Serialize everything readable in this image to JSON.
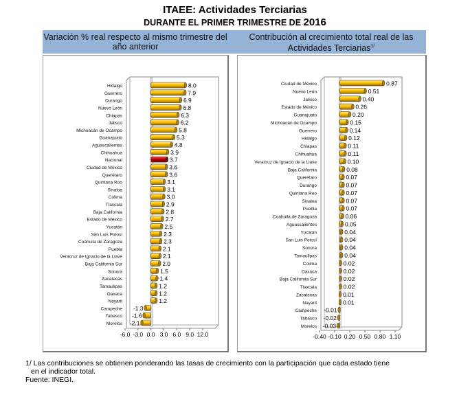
{
  "title": "ITAEE: Actividades Terciarias",
  "subtitle_prefix": "DURANTE EL PRIMER TRIMESTRE DE ",
  "subtitle_year": "2016",
  "colors": {
    "header_bg": "#95b3d7",
    "bar": "#ffc000",
    "bar_highlight": "#c00000"
  },
  "chart_data": [
    {
      "type": "bar",
      "orientation": "horizontal",
      "title": "Variación % real respecto al mismo trimestre del año anterior",
      "xlim": [
        -6,
        12
      ],
      "ticks": [
        "-6.0",
        "-3.0",
        "0.0",
        "3.0",
        "6.0",
        "9.0",
        "12.0"
      ],
      "highlight": "Nacional",
      "categories": [
        "Hidalgo",
        "Guerrero",
        "Durango",
        "Nuevo León",
        "Chiapas",
        "Jalisco",
        "Michoacán de Ocampo",
        "Guanajuato",
        "Aguascalientes",
        "Chihuahua",
        "Nacional",
        "Ciudad de México",
        "Querétaro",
        "Quintana Roo",
        "Sinaloa",
        "Colima",
        "Tlaxcala",
        "Baja California",
        "Estado de México",
        "Yucatán",
        "San Luis Potosí",
        "Coahuila de Zaragoza",
        "Puebla",
        "Veracruz de Ignacio de la Llave",
        "Baja California Sur",
        "Sonora",
        "Zacatecas",
        "Tamaulipas",
        "Oaxaca",
        "Nayarit",
        "Campeche",
        "Tabasco",
        "Morelos"
      ],
      "values": [
        8.0,
        7.9,
        6.9,
        6.8,
        6.3,
        6.2,
        5.8,
        5.3,
        4.8,
        3.9,
        3.7,
        3.6,
        3.6,
        3.1,
        3.1,
        3.0,
        2.9,
        2.8,
        2.7,
        2.5,
        2.3,
        2.3,
        2.1,
        2.1,
        2.0,
        1.5,
        1.4,
        1.2,
        1.2,
        1.2,
        -1.3,
        -1.6,
        -2.1
      ],
      "labels": [
        "8.0",
        "7.9",
        "6.9",
        "6.8",
        "6.3",
        "6.2",
        "5.8",
        "5.3",
        "4.8",
        "3.9",
        "3.7",
        "3.6",
        "3.6",
        "3.1",
        "3.1",
        "3.0",
        "2.9",
        "2.8",
        "2.7",
        "2.5",
        "2.3",
        "2.3",
        "2.1",
        "2.1",
        "2.0",
        "1.5",
        "1.4",
        "1.2",
        "1.2",
        "1.2",
        "-1.3",
        "-1.6",
        "-2.1"
      ]
    },
    {
      "type": "bar",
      "orientation": "horizontal",
      "title": "Contribución al crecimiento total real de las Actividades Terciarias",
      "title_sup": "1/",
      "xlim": [
        -0.4,
        1.1
      ],
      "ticks": [
        "-0.40",
        "-0.10",
        "0.20",
        "0.50",
        "0.80",
        "1.10"
      ],
      "categories": [
        "Ciudad de México",
        "Nuevo León",
        "Jalisco",
        "Estado de México",
        "Guanajuato",
        "Michoacán de Ocampo",
        "Guerrero",
        "Hidalgo",
        "Chiapas",
        "Chihuahua",
        "Veracruz de Ignacio de la Llave",
        "Baja California",
        "Querétaro",
        "Durango",
        "Quintana Roo",
        "Sinaloa",
        "Puebla",
        "Coahuila de Zaragoza",
        "Aguascalientes",
        "Yucatán",
        "San Luis Potosí",
        "Sonora",
        "Tamaulipas",
        "Colima",
        "Oaxaca",
        "Baja California Sur",
        "Tlaxcala",
        "Zacatecas",
        "Nayarit",
        "Campeche",
        "Tabasco",
        "Morelos"
      ],
      "values": [
        0.87,
        0.51,
        0.4,
        0.26,
        0.2,
        0.15,
        0.14,
        0.12,
        0.11,
        0.11,
        0.1,
        0.08,
        0.07,
        0.07,
        0.07,
        0.07,
        0.07,
        0.06,
        0.05,
        0.04,
        0.04,
        0.04,
        0.04,
        0.02,
        0.02,
        0.02,
        0.02,
        0.01,
        0.01,
        -0.01,
        -0.02,
        -0.03
      ],
      "labels": [
        "0.87",
        "0.51",
        "0.40",
        "0.26",
        "0.20",
        "0.15",
        "0.14",
        "0.12",
        "0.11",
        "0.11",
        "0.10",
        "0.08",
        "0.07",
        "0.07",
        "0.07",
        "0.07",
        "0.07",
        "0.06",
        "0.05",
        "0.04",
        "0.04",
        "0.04",
        "0.04",
        "0.02",
        "0.02",
        "0.02",
        "0.02",
        "0.01",
        "0.01",
        "-0.01",
        "-0.02",
        "-0.03"
      ]
    }
  ],
  "footnote_line1": "1/ Las contribuciones se obtienen ponderando las tasas de crecimiento con la participación que cada estado tiene",
  "footnote_line2": "en el indicador total.",
  "source": "Fuente: INEGI."
}
